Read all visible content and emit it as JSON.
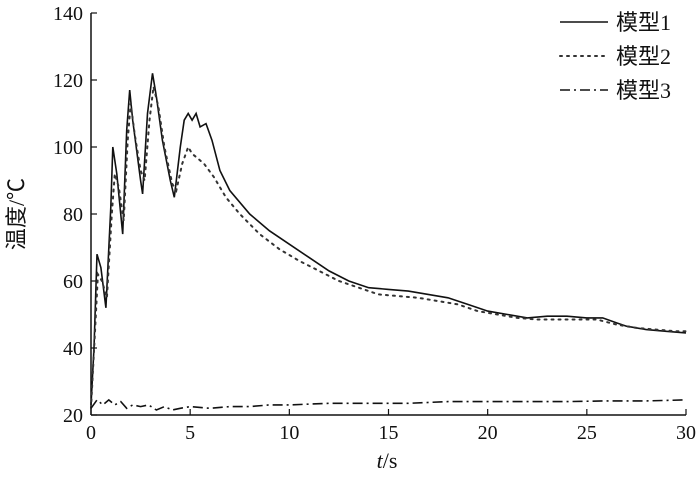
{
  "chart_data": {
    "type": "line",
    "xlabel": "t/s",
    "ylabel": "温度/℃",
    "xlim": [
      0,
      30
    ],
    "ylim": [
      20,
      140
    ],
    "xticks": [
      0,
      5,
      10,
      15,
      20,
      25,
      30
    ],
    "yticks": [
      20,
      40,
      60,
      80,
      100,
      120,
      140
    ],
    "grid": false,
    "legend_position": "top-right",
    "series": [
      {
        "name": "模型1",
        "style": "solid",
        "color": "#111111",
        "points": [
          [
            0,
            23
          ],
          [
            0.15,
            40
          ],
          [
            0.3,
            68
          ],
          [
            0.5,
            64
          ],
          [
            0.75,
            52
          ],
          [
            1.0,
            82
          ],
          [
            1.1,
            100
          ],
          [
            1.3,
            92
          ],
          [
            1.6,
            74
          ],
          [
            1.8,
            105
          ],
          [
            1.95,
            117
          ],
          [
            2.1,
            108
          ],
          [
            2.5,
            90
          ],
          [
            2.6,
            86
          ],
          [
            2.85,
            110
          ],
          [
            3.1,
            122
          ],
          [
            3.3,
            115
          ],
          [
            3.6,
            102
          ],
          [
            4.0,
            90
          ],
          [
            4.2,
            85
          ],
          [
            4.5,
            100
          ],
          [
            4.7,
            108
          ],
          [
            4.9,
            110
          ],
          [
            5.1,
            108
          ],
          [
            5.3,
            110
          ],
          [
            5.5,
            106
          ],
          [
            5.8,
            107
          ],
          [
            6.1,
            102
          ],
          [
            6.5,
            93
          ],
          [
            7.0,
            87
          ],
          [
            8.0,
            80
          ],
          [
            9.0,
            75
          ],
          [
            10.0,
            71
          ],
          [
            11.0,
            67
          ],
          [
            12.0,
            63
          ],
          [
            13.0,
            60
          ],
          [
            14.0,
            58
          ],
          [
            15.0,
            57.5
          ],
          [
            16.0,
            57
          ],
          [
            17.0,
            56
          ],
          [
            18.0,
            55
          ],
          [
            19.0,
            53
          ],
          [
            20.0,
            51
          ],
          [
            21.0,
            50
          ],
          [
            22.0,
            49
          ],
          [
            23.0,
            49.5
          ],
          [
            24.0,
            49.5
          ],
          [
            25.0,
            49
          ],
          [
            25.8,
            49
          ],
          [
            26.5,
            47.5
          ],
          [
            27.0,
            46.5
          ],
          [
            28.0,
            45.5
          ],
          [
            29.0,
            45
          ],
          [
            30.0,
            44.5
          ]
        ]
      },
      {
        "name": "模型2",
        "style": "dotted",
        "color": "#333333",
        "points": [
          [
            0,
            22
          ],
          [
            0.2,
            45
          ],
          [
            0.35,
            62
          ],
          [
            0.55,
            60
          ],
          [
            0.8,
            55
          ],
          [
            1.05,
            80
          ],
          [
            1.2,
            92
          ],
          [
            1.4,
            88
          ],
          [
            1.65,
            78
          ],
          [
            1.85,
            102
          ],
          [
            2.0,
            113
          ],
          [
            2.2,
            104
          ],
          [
            2.5,
            93
          ],
          [
            2.7,
            90
          ],
          [
            2.95,
            108
          ],
          [
            3.15,
            118
          ],
          [
            3.4,
            112
          ],
          [
            3.7,
            100
          ],
          [
            4.1,
            89
          ],
          [
            4.3,
            87
          ],
          [
            4.6,
            95
          ],
          [
            4.9,
            100
          ],
          [
            5.1,
            98
          ],
          [
            5.3,
            97
          ],
          [
            5.7,
            95
          ],
          [
            6.2,
            91
          ],
          [
            6.8,
            85
          ],
          [
            7.5,
            80
          ],
          [
            8.5,
            74
          ],
          [
            9.5,
            69.5
          ],
          [
            10.5,
            66
          ],
          [
            11.5,
            63
          ],
          [
            12.5,
            60
          ],
          [
            13.5,
            58
          ],
          [
            14.5,
            56
          ],
          [
            15.5,
            55.5
          ],
          [
            16.5,
            55
          ],
          [
            17.5,
            54
          ],
          [
            18.5,
            53
          ],
          [
            19.5,
            51
          ],
          [
            20.5,
            50
          ],
          [
            21.5,
            49
          ],
          [
            22.5,
            48.5
          ],
          [
            23.5,
            48.5
          ],
          [
            24.5,
            48.5
          ],
          [
            25.5,
            48.5
          ],
          [
            26.5,
            47
          ],
          [
            27.5,
            46
          ],
          [
            28.5,
            45.5
          ],
          [
            29.5,
            45
          ],
          [
            30.0,
            45
          ]
        ]
      },
      {
        "name": "模型3",
        "style": "dashdot",
        "color": "#111111",
        "points": [
          [
            0,
            22
          ],
          [
            0.3,
            24.5
          ],
          [
            0.6,
            23
          ],
          [
            0.9,
            24.5
          ],
          [
            1.2,
            23
          ],
          [
            1.5,
            24
          ],
          [
            1.8,
            22
          ],
          [
            2.1,
            23
          ],
          [
            2.5,
            22.5
          ],
          [
            2.9,
            23
          ],
          [
            3.3,
            21.5
          ],
          [
            3.7,
            22.5
          ],
          [
            4.1,
            21.5
          ],
          [
            4.5,
            22
          ],
          [
            5.0,
            22.5
          ],
          [
            6.0,
            22
          ],
          [
            7.0,
            22.5
          ],
          [
            8.0,
            22.5
          ],
          [
            9.0,
            23
          ],
          [
            10.0,
            23
          ],
          [
            12.0,
            23.5
          ],
          [
            14.0,
            23.5
          ],
          [
            16.0,
            23.5
          ],
          [
            18.0,
            24
          ],
          [
            20.0,
            24
          ],
          [
            22.0,
            24
          ],
          [
            24.0,
            24
          ],
          [
            26.0,
            24.2
          ],
          [
            28.0,
            24.2
          ],
          [
            30.0,
            24.5
          ]
        ]
      }
    ]
  }
}
